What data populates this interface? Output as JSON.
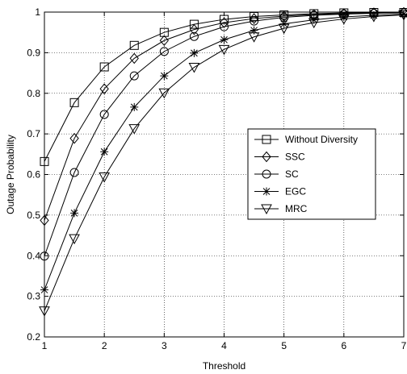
{
  "chart_data": {
    "type": "line",
    "title": "",
    "xlabel": "Threshold",
    "ylabel": "Outage Probability",
    "xlim": [
      1,
      7
    ],
    "ylim": [
      0.2,
      1
    ],
    "grid": true,
    "legend_position": "center-right",
    "x_ticks": [
      "1",
      "2",
      "3",
      "4",
      "5",
      "6",
      "7"
    ],
    "y_ticks": [
      "0.2",
      "0.3",
      "0.4",
      "0.5",
      "0.6",
      "0.7",
      "0.8",
      "0.9",
      "1"
    ],
    "x": [
      1,
      1.5,
      2,
      2.5,
      3,
      3.5,
      4,
      4.5,
      5,
      5.5,
      6,
      6.5,
      7
    ],
    "series": [
      {
        "name": "Without Diversity",
        "marker": "square",
        "values": [
          0.632,
          0.777,
          0.865,
          0.918,
          0.95,
          0.97,
          0.982,
          0.989,
          0.993,
          0.996,
          0.998,
          0.999,
          0.999
        ]
      },
      {
        "name": "SSC",
        "marker": "diamond",
        "values": [
          0.487,
          0.689,
          0.811,
          0.886,
          0.93,
          0.957,
          0.974,
          0.984,
          0.99,
          0.994,
          0.996,
          0.998,
          0.999
        ]
      },
      {
        "name": "SC",
        "marker": "circle",
        "values": [
          0.399,
          0.605,
          0.748,
          0.843,
          0.903,
          0.94,
          0.964,
          0.978,
          0.987,
          0.992,
          0.995,
          0.997,
          0.998
        ]
      },
      {
        "name": "EGC",
        "marker": "star",
        "values": [
          0.316,
          0.505,
          0.656,
          0.766,
          0.843,
          0.899,
          0.932,
          0.955,
          0.971,
          0.981,
          0.988,
          0.992,
          0.995
        ]
      },
      {
        "name": "MRC",
        "marker": "triangle-down",
        "values": [
          0.264,
          0.442,
          0.594,
          0.713,
          0.801,
          0.864,
          0.908,
          0.939,
          0.96,
          0.974,
          0.983,
          0.989,
          0.993
        ]
      }
    ]
  }
}
